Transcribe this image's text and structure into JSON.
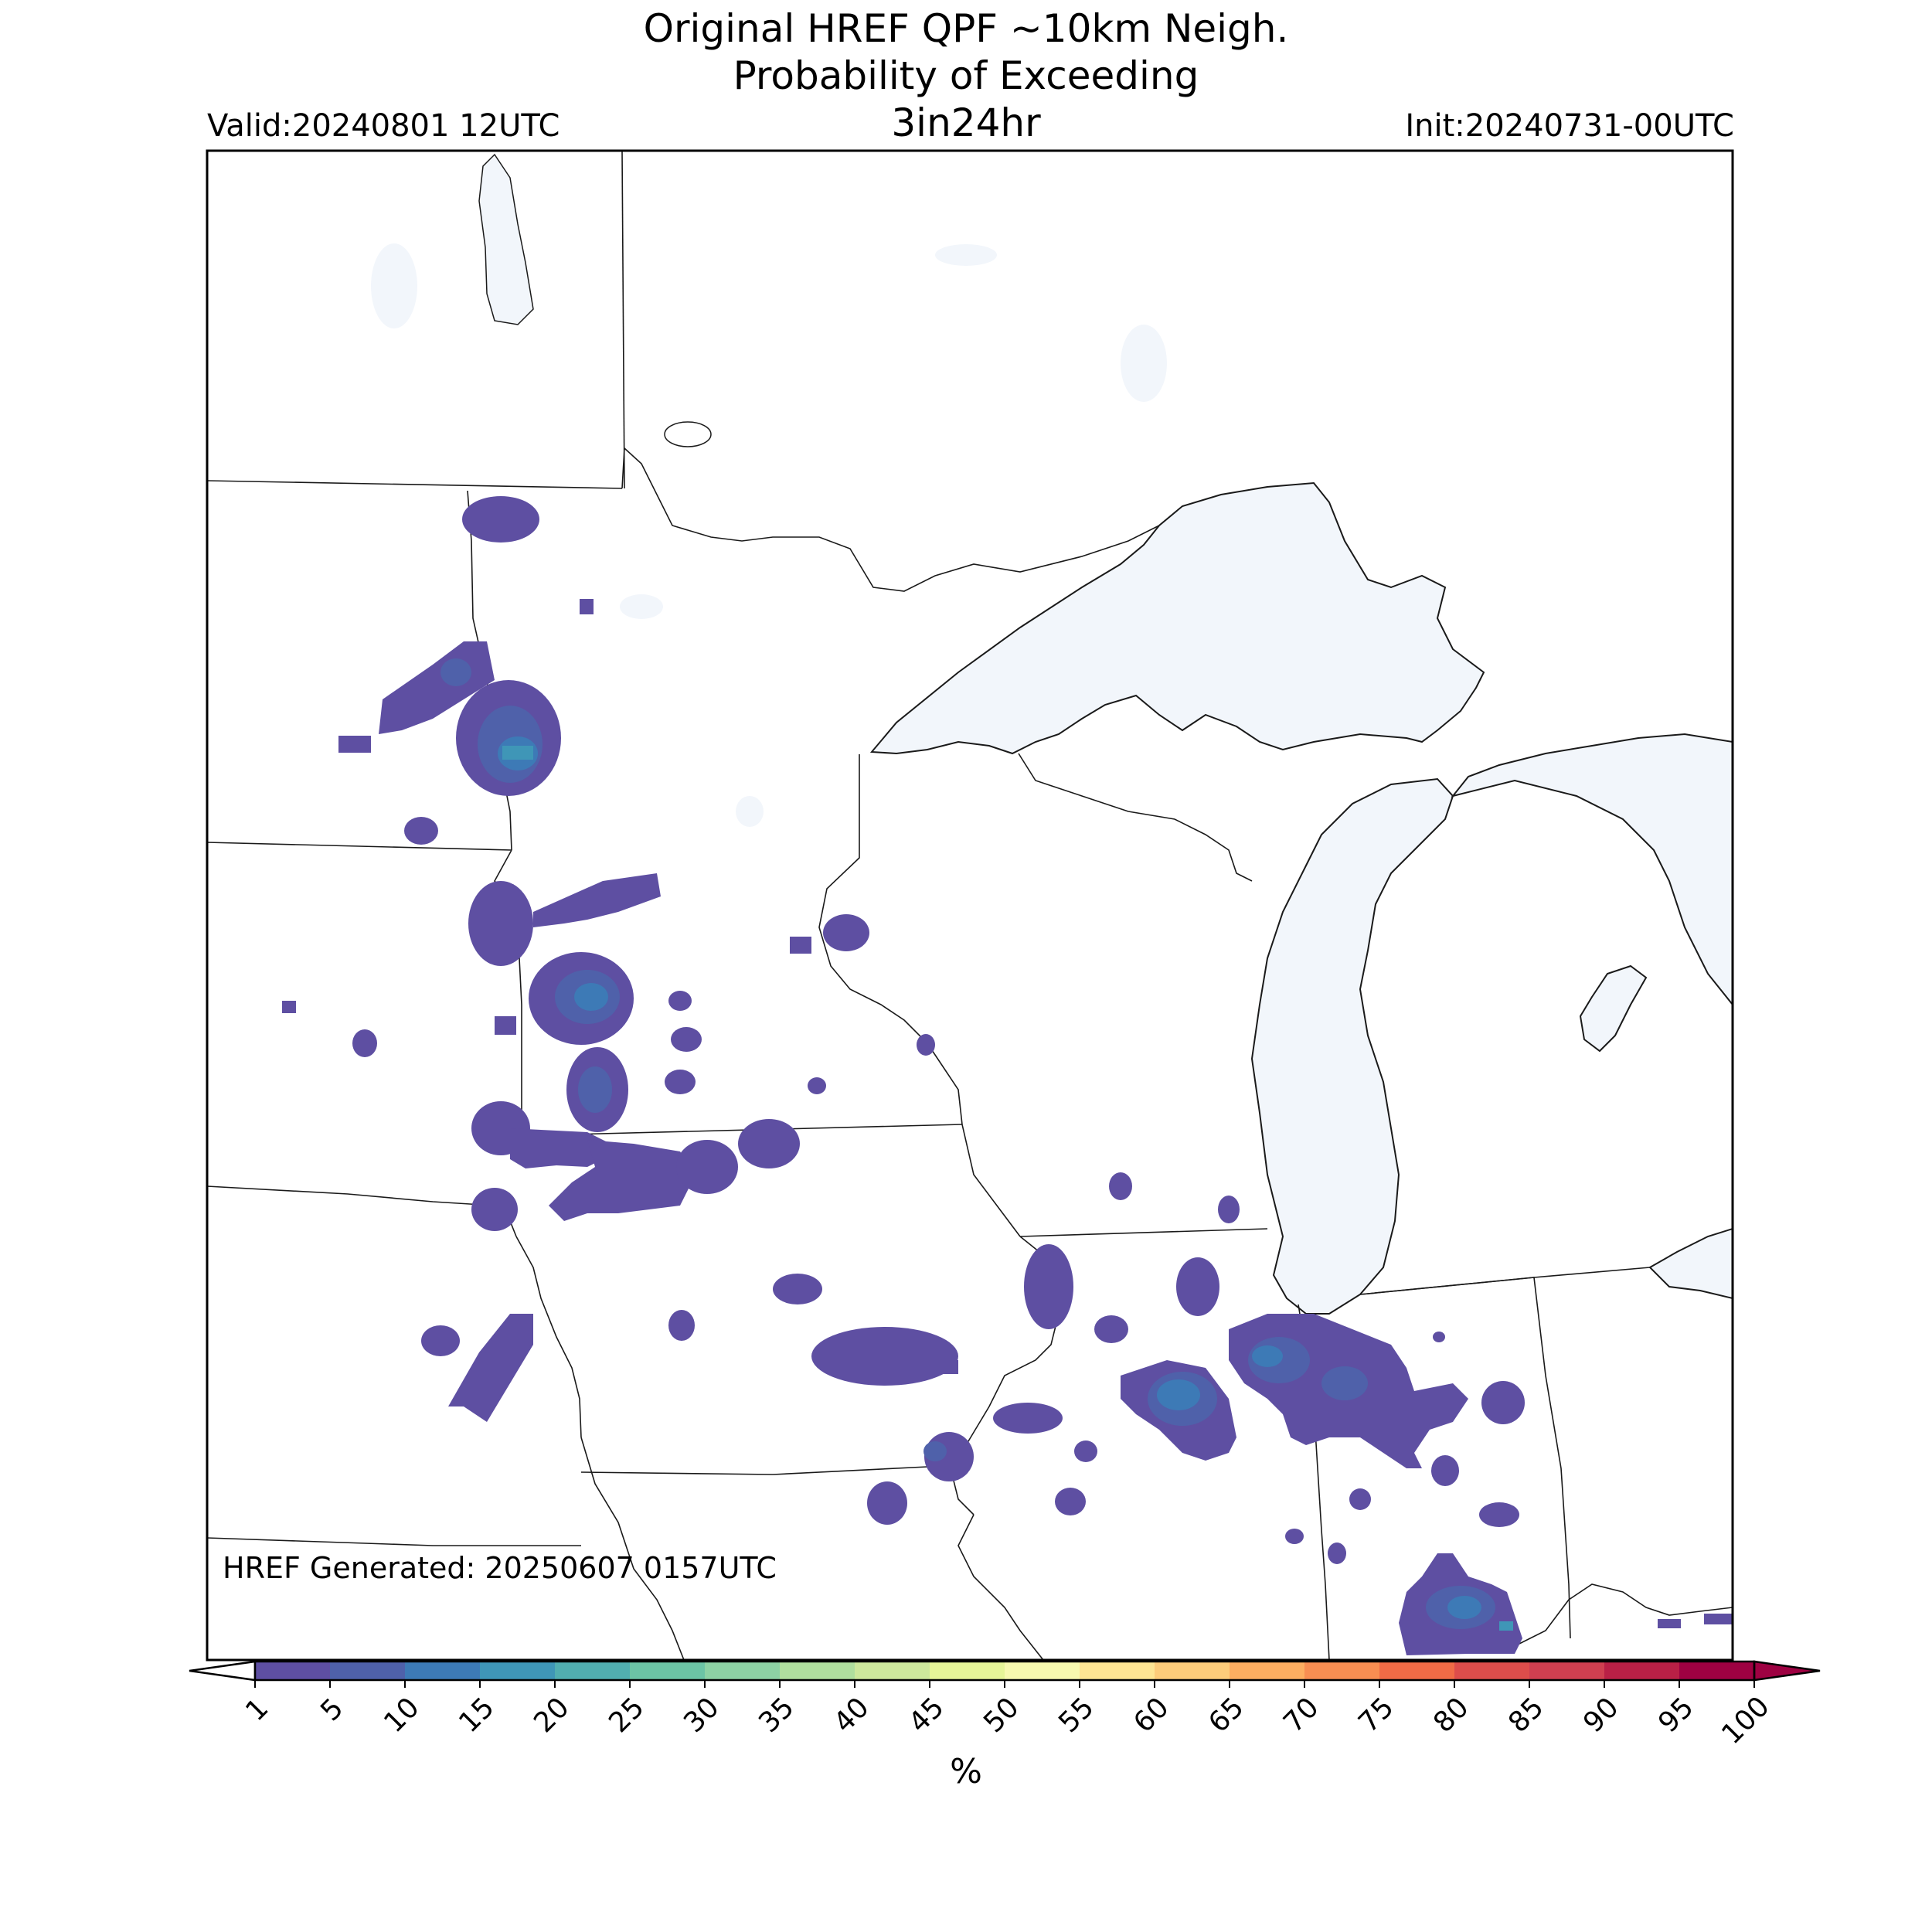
{
  "title": {
    "line1": "Original HREF QPF ~10km Neigh.",
    "line2": "Probability of Exceeding",
    "line3": "3in24hr"
  },
  "valid_label": "Valid:20240801 12UTC",
  "init_label": "Init:20240731-00UTC",
  "generated_label": "HREF Generated: 20250607 0157UTC",
  "colorbar": {
    "units": "%",
    "ticks": [
      "1",
      "5",
      "10",
      "15",
      "20",
      "25",
      "30",
      "35",
      "40",
      "45",
      "50",
      "55",
      "60",
      "65",
      "70",
      "75",
      "80",
      "85",
      "90",
      "95",
      "100"
    ],
    "colors": [
      "#5e4fa2",
      "#4f61aa",
      "#3d7ab6",
      "#3f96b7",
      "#51aeb0",
      "#6cc4a5",
      "#8dd2a4",
      "#b0df9e",
      "#cde89c",
      "#e6f598",
      "#f7f9af",
      "#fee593",
      "#fdcc7a",
      "#fdae61",
      "#f88e52",
      "#f06b46",
      "#dd4d4b",
      "#cf3f50",
      "#b92046",
      "#9e0142"
    ],
    "under_color": "#ffffff",
    "over_color": "#9e0142"
  },
  "map": {
    "land_color": "#ffffff",
    "water_color": "#f2f6fb",
    "border_color": "#1a1a1a"
  }
}
